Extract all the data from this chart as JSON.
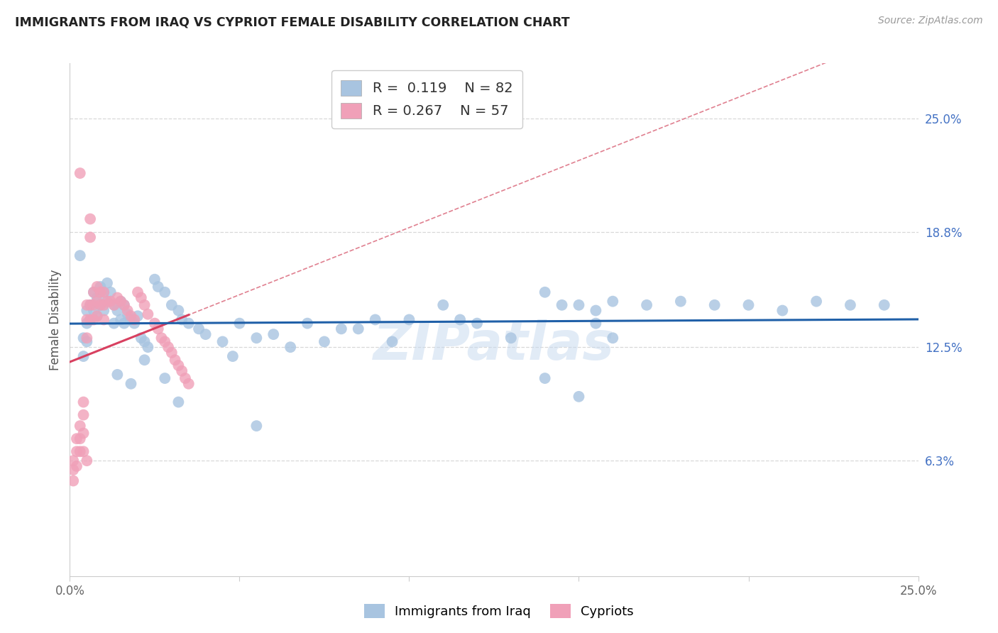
{
  "title": "IMMIGRANTS FROM IRAQ VS CYPRIOT FEMALE DISABILITY CORRELATION CHART",
  "source": "Source: ZipAtlas.com",
  "ylabel": "Female Disability",
  "right_yticks": [
    "25.0%",
    "18.8%",
    "12.5%",
    "6.3%"
  ],
  "right_ytick_vals": [
    0.25,
    0.188,
    0.125,
    0.063
  ],
  "xmin": 0.0,
  "xmax": 0.25,
  "ymin": 0.0,
  "ymax": 0.28,
  "legend_r_blue": "0.119",
  "legend_n_blue": "82",
  "legend_r_pink": "0.267",
  "legend_n_pink": "57",
  "blue_color": "#a8c4e0",
  "pink_color": "#f0a0b8",
  "line_blue": "#2060a8",
  "line_pink": "#d84060",
  "line_dashed_color": "#e08090",
  "watermark": "ZIPatlas",
  "blue_x": [
    0.003,
    0.004,
    0.004,
    0.005,
    0.005,
    0.005,
    0.006,
    0.006,
    0.007,
    0.007,
    0.008,
    0.008,
    0.009,
    0.009,
    0.01,
    0.01,
    0.011,
    0.011,
    0.012,
    0.013,
    0.013,
    0.014,
    0.015,
    0.015,
    0.016,
    0.016,
    0.017,
    0.018,
    0.019,
    0.02,
    0.021,
    0.022,
    0.023,
    0.025,
    0.026,
    0.028,
    0.03,
    0.032,
    0.033,
    0.035,
    0.038,
    0.04,
    0.045,
    0.048,
    0.05,
    0.055,
    0.06,
    0.065,
    0.07,
    0.075,
    0.08,
    0.085,
    0.09,
    0.095,
    0.1,
    0.11,
    0.115,
    0.12,
    0.13,
    0.14,
    0.15,
    0.155,
    0.16,
    0.17,
    0.18,
    0.19,
    0.2,
    0.21,
    0.22,
    0.23,
    0.24,
    0.014,
    0.018,
    0.022,
    0.028,
    0.032,
    0.055,
    0.14,
    0.145,
    0.15,
    0.155,
    0.16
  ],
  "blue_y": [
    0.175,
    0.13,
    0.12,
    0.145,
    0.138,
    0.128,
    0.148,
    0.14,
    0.155,
    0.145,
    0.152,
    0.142,
    0.158,
    0.148,
    0.155,
    0.145,
    0.16,
    0.15,
    0.155,
    0.148,
    0.138,
    0.145,
    0.15,
    0.14,
    0.148,
    0.138,
    0.143,
    0.14,
    0.138,
    0.142,
    0.13,
    0.128,
    0.125,
    0.162,
    0.158,
    0.155,
    0.148,
    0.145,
    0.14,
    0.138,
    0.135,
    0.132,
    0.128,
    0.12,
    0.138,
    0.13,
    0.132,
    0.125,
    0.138,
    0.128,
    0.135,
    0.135,
    0.14,
    0.128,
    0.14,
    0.148,
    0.14,
    0.138,
    0.13,
    0.108,
    0.098,
    0.138,
    0.13,
    0.148,
    0.15,
    0.148,
    0.148,
    0.145,
    0.15,
    0.148,
    0.148,
    0.11,
    0.105,
    0.118,
    0.108,
    0.095,
    0.082,
    0.155,
    0.148,
    0.148,
    0.145,
    0.15
  ],
  "pink_x": [
    0.001,
    0.001,
    0.001,
    0.002,
    0.002,
    0.002,
    0.003,
    0.003,
    0.003,
    0.003,
    0.004,
    0.004,
    0.004,
    0.004,
    0.005,
    0.005,
    0.005,
    0.005,
    0.006,
    0.006,
    0.006,
    0.006,
    0.007,
    0.007,
    0.007,
    0.008,
    0.008,
    0.008,
    0.009,
    0.009,
    0.01,
    0.01,
    0.01,
    0.011,
    0.012,
    0.013,
    0.014,
    0.015,
    0.016,
    0.017,
    0.018,
    0.019,
    0.02,
    0.021,
    0.022,
    0.023,
    0.025,
    0.026,
    0.027,
    0.028,
    0.029,
    0.03,
    0.031,
    0.032,
    0.033,
    0.034,
    0.035
  ],
  "pink_y": [
    0.063,
    0.058,
    0.052,
    0.075,
    0.068,
    0.06,
    0.082,
    0.075,
    0.068,
    0.22,
    0.095,
    0.088,
    0.078,
    0.068,
    0.148,
    0.14,
    0.13,
    0.063,
    0.195,
    0.185,
    0.148,
    0.14,
    0.155,
    0.148,
    0.14,
    0.158,
    0.15,
    0.142,
    0.155,
    0.148,
    0.155,
    0.148,
    0.14,
    0.15,
    0.15,
    0.148,
    0.152,
    0.15,
    0.148,
    0.145,
    0.142,
    0.14,
    0.155,
    0.152,
    0.148,
    0.143,
    0.138,
    0.135,
    0.13,
    0.128,
    0.125,
    0.122,
    0.118,
    0.115,
    0.112,
    0.108,
    0.105
  ]
}
